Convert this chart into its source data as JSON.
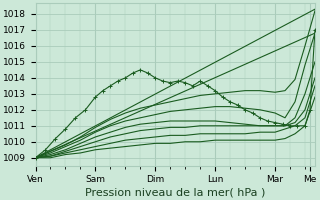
{
  "bg_color": "#cce8d8",
  "grid_color": "#aaccbb",
  "line_color": "#1a5c20",
  "xlabel": "Pression niveau de la mer( hPa )",
  "xlabel_fontsize": 8,
  "tick_fontsize": 6.5,
  "ylim": [
    1008.5,
    1018.7
  ],
  "yticks": [
    1009,
    1010,
    1011,
    1012,
    1013,
    1014,
    1015,
    1016,
    1017,
    1018
  ],
  "day_labels": [
    "Ven",
    "Sam",
    "Dim",
    "Lun",
    "Mar",
    "Me"
  ],
  "day_positions": [
    0,
    24,
    48,
    72,
    96,
    110
  ],
  "total_hours": 112,
  "series": [
    {
      "x": [
        0,
        6,
        12,
        18,
        24,
        30,
        36,
        42,
        48,
        54,
        60,
        66,
        72,
        78,
        84,
        90,
        96,
        100,
        104,
        108,
        112
      ],
      "y": [
        1009.0,
        1009.4,
        1009.8,
        1010.3,
        1010.9,
        1011.4,
        1011.8,
        1012.1,
        1012.3,
        1012.5,
        1012.7,
        1012.9,
        1013.0,
        1013.1,
        1013.2,
        1013.2,
        1013.1,
        1013.2,
        1013.9,
        1016.0,
        1018.2
      ],
      "marker": false,
      "lw": 0.8
    },
    {
      "x": [
        0,
        6,
        12,
        18,
        24,
        30,
        36,
        42,
        48,
        54,
        60,
        66,
        72,
        78,
        84,
        90,
        96,
        100,
        104,
        108,
        112
      ],
      "y": [
        1009.0,
        1009.3,
        1009.7,
        1010.1,
        1010.6,
        1011.0,
        1011.3,
        1011.5,
        1011.7,
        1011.9,
        1012.0,
        1012.1,
        1012.2,
        1012.2,
        1012.1,
        1012.0,
        1011.8,
        1011.5,
        1012.5,
        1014.8,
        1016.8
      ],
      "marker": false,
      "lw": 0.8
    },
    {
      "x": [
        0,
        6,
        12,
        18,
        24,
        30,
        36,
        42,
        48,
        54,
        60,
        66,
        72,
        78,
        84,
        90,
        96,
        100,
        104,
        108,
        112
      ],
      "y": [
        1009.0,
        1009.2,
        1009.5,
        1009.9,
        1010.3,
        1010.6,
        1010.9,
        1011.1,
        1011.2,
        1011.3,
        1011.3,
        1011.3,
        1011.3,
        1011.2,
        1011.1,
        1011.0,
        1011.0,
        1011.0,
        1011.5,
        1013.0,
        1015.0
      ],
      "marker": false,
      "lw": 0.8
    },
    {
      "x": [
        0,
        6,
        12,
        18,
        24,
        30,
        36,
        42,
        48,
        54,
        60,
        66,
        72,
        78,
        84,
        90,
        96,
        100,
        104,
        108,
        112
      ],
      "y": [
        1009.0,
        1009.1,
        1009.4,
        1009.7,
        1010.0,
        1010.3,
        1010.5,
        1010.7,
        1010.8,
        1010.9,
        1010.9,
        1011.0,
        1011.0,
        1011.0,
        1011.0,
        1011.0,
        1011.0,
        1011.0,
        1011.2,
        1012.0,
        1014.0
      ],
      "marker": false,
      "lw": 0.8
    },
    {
      "x": [
        0,
        6,
        12,
        18,
        24,
        30,
        36,
        42,
        48,
        54,
        60,
        66,
        72,
        78,
        84,
        90,
        96,
        100,
        104,
        108,
        112
      ],
      "y": [
        1009.0,
        1009.1,
        1009.3,
        1009.5,
        1009.7,
        1009.9,
        1010.1,
        1010.2,
        1010.3,
        1010.4,
        1010.4,
        1010.5,
        1010.5,
        1010.5,
        1010.5,
        1010.6,
        1010.6,
        1010.8,
        1011.0,
        1011.5,
        1013.5
      ],
      "marker": false,
      "lw": 0.8
    },
    {
      "x": [
        0,
        6,
        12,
        18,
        24,
        30,
        36,
        42,
        48,
        54,
        60,
        66,
        72,
        78,
        84,
        90,
        96,
        100,
        104,
        108,
        112
      ],
      "y": [
        1009.0,
        1009.0,
        1009.2,
        1009.3,
        1009.5,
        1009.6,
        1009.7,
        1009.8,
        1009.9,
        1009.9,
        1010.0,
        1010.0,
        1010.1,
        1010.1,
        1010.1,
        1010.1,
        1010.1,
        1010.2,
        1010.5,
        1011.0,
        1012.8
      ],
      "marker": false,
      "lw": 0.8
    },
    {
      "x": [
        0,
        4,
        8,
        12,
        16,
        20,
        24,
        27,
        30,
        33,
        36,
        39,
        42,
        45,
        48,
        51,
        54,
        57,
        60,
        63,
        66,
        69,
        72,
        75,
        78,
        81,
        84,
        87,
        90,
        93,
        96,
        99,
        102,
        105,
        108,
        110,
        112
      ],
      "y": [
        1009.0,
        1009.5,
        1010.2,
        1010.8,
        1011.5,
        1012.0,
        1012.8,
        1013.2,
        1013.5,
        1013.8,
        1014.0,
        1014.3,
        1014.5,
        1014.3,
        1014.0,
        1013.8,
        1013.7,
        1013.8,
        1013.7,
        1013.5,
        1013.8,
        1013.5,
        1013.2,
        1012.8,
        1012.5,
        1012.3,
        1012.0,
        1011.8,
        1011.5,
        1011.3,
        1011.2,
        1011.1,
        1011.0,
        1011.0,
        1011.0,
        1012.0,
        1017.0
      ],
      "marker": true,
      "lw": 0.8
    },
    {
      "x": [
        0,
        112
      ],
      "y": [
        1009.0,
        1018.3
      ],
      "marker": false,
      "lw": 0.8
    },
    {
      "x": [
        0,
        112
      ],
      "y": [
        1009.0,
        1016.8
      ],
      "marker": false,
      "lw": 0.8
    }
  ]
}
